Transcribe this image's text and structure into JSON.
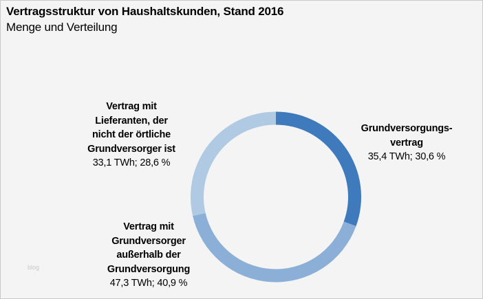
{
  "chart_data": {
    "type": "pie",
    "variant": "donut",
    "title": "Vertragsstruktur von Haushaltskunden, Stand 2016",
    "subtitle": "Menge und Verteilung",
    "unit": "TWh",
    "slices": [
      {
        "label": [
          "Grundversorgungs-",
          "vertrag"
        ],
        "value": 35.4,
        "percent": 30.6,
        "value_text": "35,4 TWh; 30,6 %",
        "color": "#3f7abd"
      },
      {
        "label": [
          "Vertrag mit",
          "Grundversorger",
          "außerhalb der",
          "Grundversorgung"
        ],
        "value": 47.3,
        "percent": 40.9,
        "value_text": "47,3 TWh; 40,9 %",
        "color": "#8cafd7"
      },
      {
        "label": [
          "Vertrag mit",
          "Lieferanten, der",
          "nicht der örtliche",
          "Grundversorger ist"
        ],
        "value": 33.1,
        "percent": 28.6,
        "value_text": "33,1 TWh; 28,6 %",
        "color": "#b0cae4"
      }
    ]
  },
  "watermark": "blog"
}
